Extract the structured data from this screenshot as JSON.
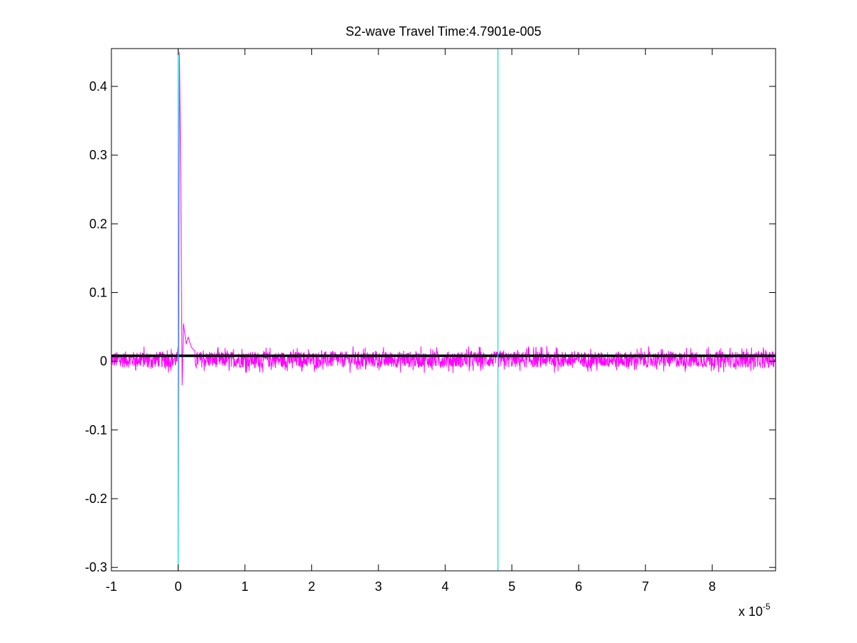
{
  "chart_data": {
    "type": "line",
    "title": "S2-wave Travel Time:4.7901e-005",
    "xlabel": "",
    "ylabel": "",
    "x_scale_note": "x 10",
    "x_scale_exponent": "-5",
    "xlim": [
      -1,
      8.95
    ],
    "ylim": [
      -0.305,
      0.455
    ],
    "x_ticks": [
      -1,
      0,
      1,
      2,
      3,
      4,
      5,
      6,
      7,
      8
    ],
    "x_tick_labels": [
      "-1",
      "0",
      "1",
      "2",
      "3",
      "4",
      "5",
      "6",
      "7",
      "8"
    ],
    "y_ticks": [
      0.4,
      0.3,
      0.2,
      0.1,
      0,
      -0.1,
      -0.2,
      -0.3
    ],
    "y_tick_labels": [
      "0.4",
      "0.3",
      "0.2",
      "0.1",
      "0",
      "-0.1",
      "-0.2",
      "-0.3"
    ],
    "grid": false,
    "series": [
      {
        "style": "waveform",
        "color": "#ff00ff",
        "noise_range": [
          -0.017,
          0.022
        ],
        "spike_x": [
          0.0,
          0.02,
          0.04,
          0.06,
          0.08,
          0.1,
          0.12,
          0.15,
          0.2,
          0.25
        ],
        "spike_y": [
          -0.3,
          0.45,
          0.25,
          -0.035,
          0.055,
          0.04,
          0.025,
          0.035,
          0.02,
          0.015
        ]
      },
      {
        "style": "horizontal-line",
        "color": "#000000",
        "y": 0.008
      },
      {
        "style": "vertical-line",
        "color": "#00e0e0",
        "x": 0.0
      },
      {
        "style": "vertical-line",
        "color": "#00e0e0",
        "x": 4.7901
      }
    ]
  }
}
